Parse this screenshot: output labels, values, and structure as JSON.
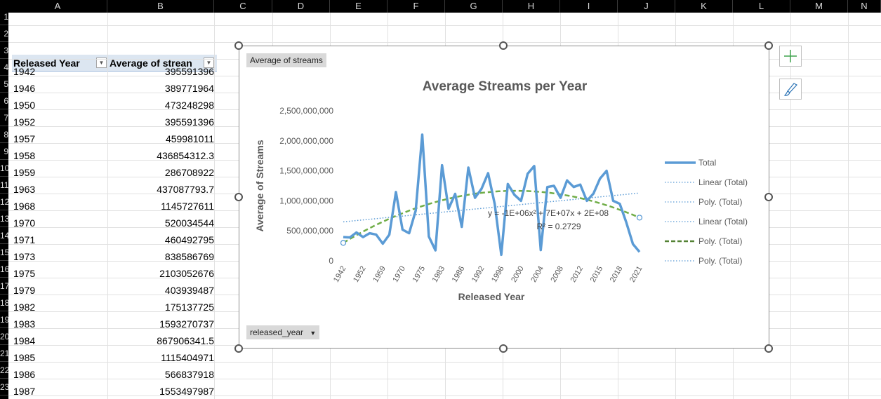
{
  "columns": [
    "A",
    "B",
    "C",
    "D",
    "E",
    "F",
    "G",
    "H",
    "I",
    "J",
    "K",
    "L",
    "M",
    "N"
  ],
  "row_numbers": [
    "1",
    "2",
    "3",
    "4",
    "5",
    "6",
    "7",
    "8",
    "9",
    "10",
    "11",
    "12",
    "13",
    "14",
    "15",
    "16",
    "17",
    "18",
    "19",
    "20",
    "21",
    "22",
    "23"
  ],
  "pivot": {
    "header_year": "Released Year",
    "header_avg": "Average of strean",
    "rows": [
      [
        "1942",
        "395591396"
      ],
      [
        "1946",
        "389771964"
      ],
      [
        "1950",
        "473248298"
      ],
      [
        "1952",
        "395591396"
      ],
      [
        "1957",
        "459981011"
      ],
      [
        "1958",
        "436854312.3"
      ],
      [
        "1959",
        "286708922"
      ],
      [
        "1963",
        "437087793.7"
      ],
      [
        "1968",
        "1145727611"
      ],
      [
        "1970",
        "520034544"
      ],
      [
        "1971",
        "460492795"
      ],
      [
        "1973",
        "838586769"
      ],
      [
        "1975",
        "2103052676"
      ],
      [
        "1979",
        "403939487"
      ],
      [
        "1982",
        "175137725"
      ],
      [
        "1983",
        "1593270737"
      ],
      [
        "1984",
        "867906341.5"
      ],
      [
        "1985",
        "1115404971"
      ],
      [
        "1986",
        "566837918"
      ],
      [
        "1987",
        "1553497987"
      ]
    ]
  },
  "chart_buttons": {
    "values_field": "Average of streams",
    "axis_field": "released_year"
  },
  "icons": {
    "add": "plus-icon",
    "style": "brush-icon"
  },
  "colors": {
    "total": "#5b9bd5",
    "poly": "#548235",
    "grid_bg": "#000000"
  },
  "chart_data": {
    "type": "line",
    "title": "Average Streams per Year",
    "xlabel": "Released Year",
    "ylabel": "Average of Streams",
    "ylim": [
      0,
      2500000000
    ],
    "y_ticks": [
      "0",
      "500,000,000",
      "1,000,000,000",
      "1,500,000,000",
      "2,000,000,000",
      "2,500,000,000"
    ],
    "x_tick_labels": [
      "1942",
      "1952",
      "1959",
      "1970",
      "1975",
      "1983",
      "1986",
      "1992",
      "1996",
      "2000",
      "2004",
      "2008",
      "2012",
      "2015",
      "2018",
      "2021"
    ],
    "series": [
      {
        "name": "Total",
        "values": [
          395591396,
          389771964,
          473248298,
          395591396,
          459981011,
          436854312.3,
          286708922,
          437087793.7,
          1145727611,
          520034544,
          460492795,
          838586769,
          2103052676,
          403939487,
          175137725,
          1593270737,
          867906341.5,
          1115404971,
          566837918,
          1553497987,
          1050000000,
          1200000000,
          1460000000,
          950000000,
          100000000,
          1280000000,
          1100000000,
          1000000000,
          1450000000,
          1580000000,
          180000000,
          1230000000,
          1250000000,
          1050000000,
          1340000000,
          1230000000,
          1270000000,
          1000000000,
          1120000000,
          1370000000,
          1500000000,
          1000000000,
          950000000,
          640000000,
          280000000,
          150000000
        ]
      }
    ],
    "legend": [
      "Total",
      "Linear (Total)",
      "Poly. (Total)",
      "Linear (Total)",
      "Poly. (Total)",
      "Poly. (Total)"
    ],
    "legend_position": "right",
    "trendline_equation": "y = -1E+06x² + 7E+07x + 2E+08",
    "r_squared": "R² = 0.2729",
    "linear_trend": [
      650000000,
      1130000000
    ],
    "poly_trend": [
      300000000,
      1150000000,
      720000000
    ]
  }
}
